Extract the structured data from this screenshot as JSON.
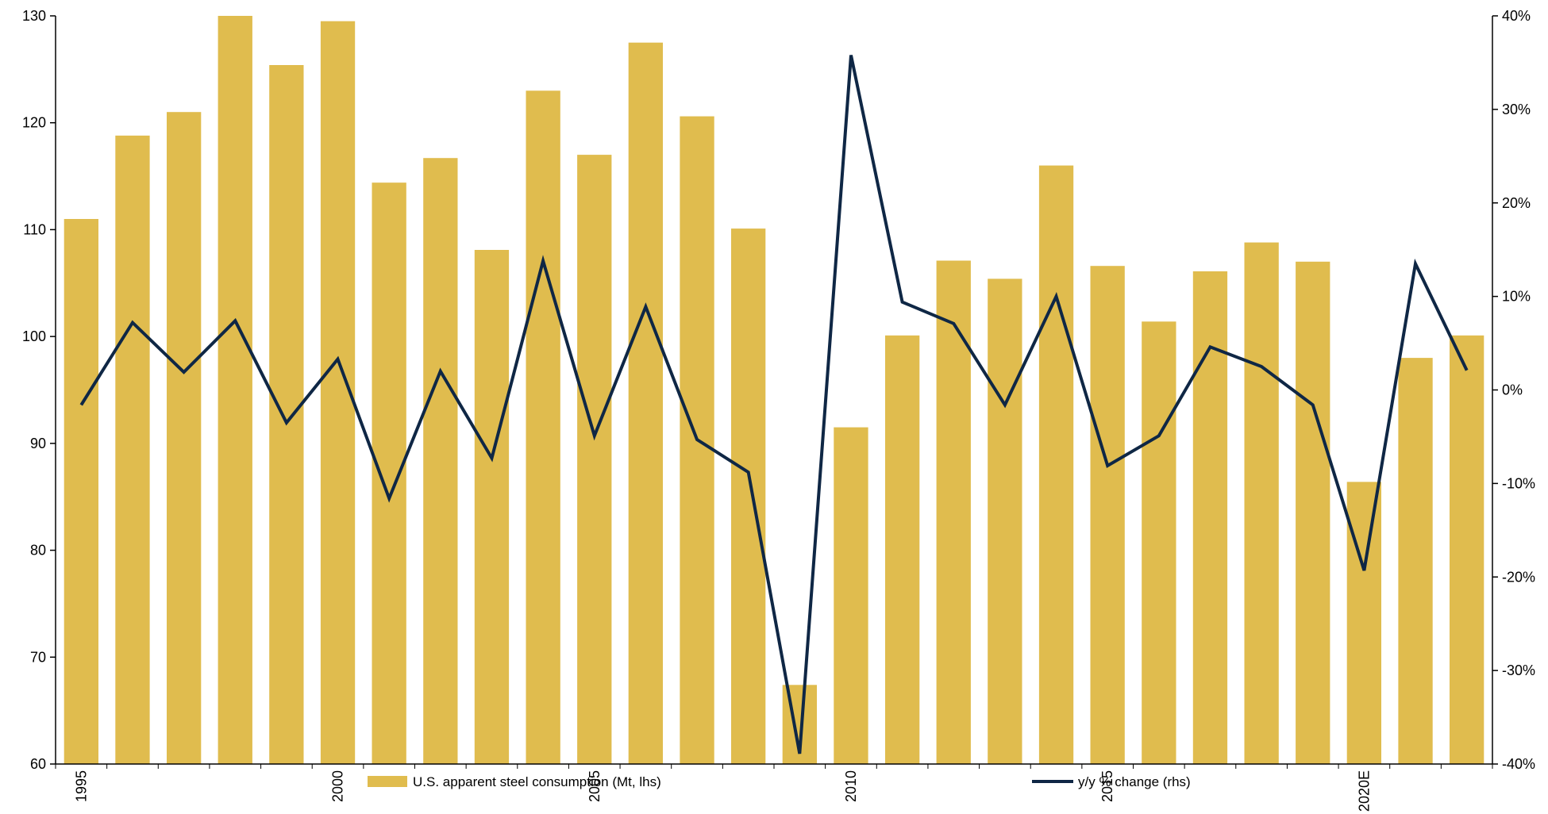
{
  "chart_data": {
    "type": "bar+line",
    "x": [
      "1995",
      "1996",
      "1997",
      "1998",
      "1999",
      "2000",
      "2001",
      "2002",
      "2003",
      "2004",
      "2005",
      "2006",
      "2007",
      "2008",
      "2009",
      "2010",
      "2011",
      "2012",
      "2013",
      "2014",
      "2015",
      "2016",
      "2017",
      "2018",
      "2019",
      "2020E",
      "2021E",
      "2022E"
    ],
    "x_tick_labels": [
      {
        "index": 0,
        "label": "1995"
      },
      {
        "index": 5,
        "label": "2000"
      },
      {
        "index": 10,
        "label": "2005"
      },
      {
        "index": 15,
        "label": "2010"
      },
      {
        "index": 20,
        "label": "2015"
      },
      {
        "index": 25,
        "label": "2020E"
      }
    ],
    "series": [
      {
        "name": "U.S. apparent steel consumption (Mt, lhs)",
        "type": "bar",
        "axis": "left",
        "color": "#E0BC4E",
        "values": [
          111.0,
          118.8,
          121.0,
          130.0,
          125.4,
          129.5,
          114.4,
          116.7,
          108.1,
          123.0,
          117.0,
          127.5,
          120.6,
          110.1,
          67.4,
          91.5,
          100.1,
          107.1,
          105.4,
          116.0,
          106.6,
          101.4,
          106.1,
          108.8,
          107.0,
          86.4,
          98.0,
          100.1
        ]
      },
      {
        "name": "y/y % change (rhs)",
        "type": "line",
        "axis": "right",
        "color": "#0F2745",
        "values": [
          -1.6,
          7.2,
          1.9,
          7.4,
          -3.5,
          3.3,
          -11.6,
          2.0,
          -7.3,
          13.8,
          -4.9,
          8.9,
          -5.3,
          -8.8,
          -38.9,
          35.8,
          9.4,
          7.1,
          -1.6,
          10.0,
          -8.1,
          -4.9,
          4.6,
          2.5,
          -1.6,
          -19.3,
          13.5,
          2.1
        ]
      }
    ],
    "y_left": {
      "min": 60,
      "max": 130,
      "step": 10,
      "ticks": [
        "60",
        "70",
        "80",
        "90",
        "100",
        "110",
        "120",
        "130"
      ]
    },
    "y_right": {
      "min": -40,
      "max": 40,
      "step": 10,
      "ticks": [
        "-40%",
        "-30%",
        "-20%",
        "-10%",
        "0%",
        "10%",
        "20%",
        "30%",
        "40%"
      ]
    },
    "legend_position": "bottom-center",
    "grid": false,
    "title": "",
    "xlabel": "",
    "ylabel": ""
  }
}
